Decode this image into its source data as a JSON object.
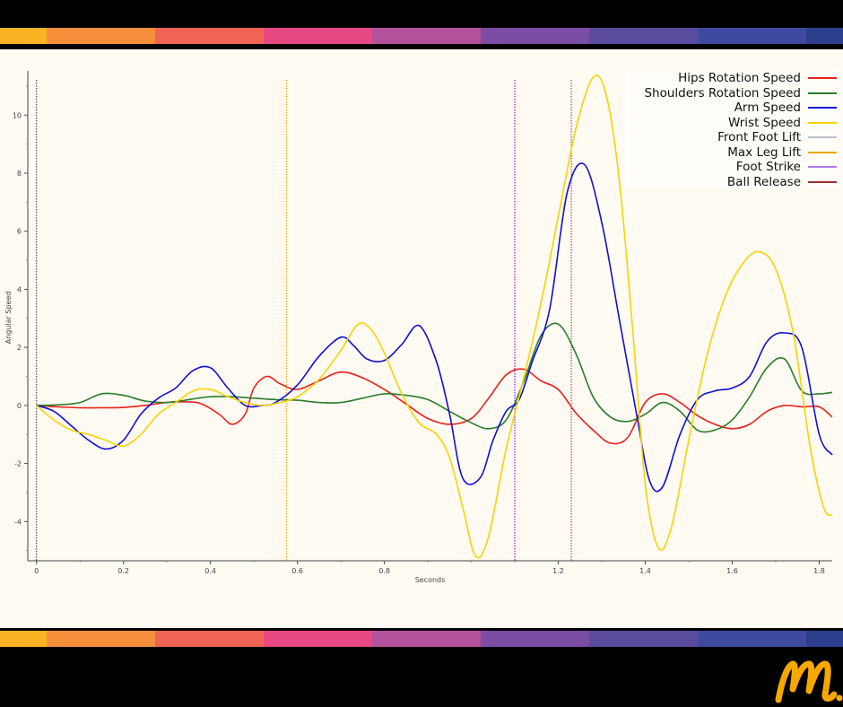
{
  "band_colors": [
    "#fbb324",
    "#f68f3c",
    "#f06456",
    "#e74783",
    "#b2529c",
    "#7b4da2",
    "#5b4b9f",
    "#3e4aa0",
    "#2d3f8c"
  ],
  "chart_data": {
    "type": "line",
    "title": "",
    "xlabel": "Seconds",
    "ylabel": "Angular Speed",
    "xlim": [
      -0.02,
      1.83
    ],
    "ylim": [
      -5.35,
      11.4
    ],
    "x_ticks": [
      0,
      0.2,
      0.4,
      0.6,
      0.8,
      1.2,
      1.4,
      1.6,
      1.8
    ],
    "x_tick_labels": [
      "0",
      "0.2",
      "0.4",
      "0.6",
      "0.8",
      "1.2",
      "1.4",
      "1.6",
      "1.8"
    ],
    "y_ticks": [
      -4,
      -2,
      0,
      2,
      4,
      6,
      8,
      10
    ],
    "y_tick_labels": [
      "-4",
      "-2",
      "0",
      "2",
      "4",
      "6",
      "8",
      "10"
    ],
    "grid": false,
    "legend_position": "top-right",
    "series": [
      {
        "name": "Hips Rotation Speed",
        "color": "#e8201a",
        "x": [
          0,
          0.05,
          0.1,
          0.15,
          0.2,
          0.25,
          0.3,
          0.35,
          0.38,
          0.42,
          0.45,
          0.48,
          0.5,
          0.53,
          0.56,
          0.6,
          0.65,
          0.7,
          0.75,
          0.8,
          0.85,
          0.9,
          0.95,
          1.0,
          1.04,
          1.08,
          1.12,
          1.16,
          1.2,
          1.24,
          1.28,
          1.32,
          1.36,
          1.4,
          1.44,
          1.48,
          1.52,
          1.56,
          1.6,
          1.64,
          1.68,
          1.72,
          1.76,
          1.8,
          1.83
        ],
        "y": [
          0,
          -0.05,
          -0.08,
          -0.08,
          -0.07,
          0,
          0.1,
          0.12,
          0.05,
          -0.3,
          -0.65,
          -0.3,
          0.6,
          1.0,
          0.75,
          0.55,
          0.85,
          1.15,
          0.95,
          0.55,
          0.05,
          -0.45,
          -0.65,
          -0.45,
          0.25,
          1.05,
          1.25,
          0.85,
          0.55,
          -0.25,
          -0.85,
          -1.3,
          -1.1,
          0.1,
          0.4,
          0.1,
          -0.35,
          -0.65,
          -0.8,
          -0.65,
          -0.2,
          0,
          -0.05,
          -0.05,
          -0.4
        ]
      },
      {
        "name": "Shoulders Rotation Speed",
        "color": "#2a7d2a",
        "x": [
          0,
          0.05,
          0.1,
          0.15,
          0.2,
          0.25,
          0.3,
          0.35,
          0.4,
          0.45,
          0.5,
          0.55,
          0.6,
          0.65,
          0.7,
          0.75,
          0.8,
          0.85,
          0.9,
          0.95,
          1.0,
          1.04,
          1.08,
          1.12,
          1.16,
          1.2,
          1.24,
          1.28,
          1.32,
          1.36,
          1.4,
          1.44,
          1.48,
          1.52,
          1.56,
          1.6,
          1.64,
          1.68,
          1.72,
          1.76,
          1.8,
          1.83
        ],
        "y": [
          0,
          0.02,
          0.1,
          0.4,
          0.35,
          0.15,
          0.1,
          0.2,
          0.3,
          0.3,
          0.25,
          0.2,
          0.18,
          0.1,
          0.1,
          0.25,
          0.4,
          0.35,
          0.2,
          -0.2,
          -0.6,
          -0.8,
          -0.5,
          0.8,
          2.4,
          2.8,
          1.8,
          0.3,
          -0.4,
          -0.55,
          -0.3,
          0.1,
          -0.2,
          -0.85,
          -0.85,
          -0.5,
          0.3,
          1.3,
          1.6,
          0.5,
          0.4,
          0.45
        ]
      },
      {
        "name": "Arm Speed",
        "color": "#0f0fd6",
        "x": [
          0,
          0.04,
          0.08,
          0.12,
          0.16,
          0.2,
          0.24,
          0.28,
          0.32,
          0.36,
          0.4,
          0.44,
          0.48,
          0.52,
          0.55,
          0.6,
          0.65,
          0.7,
          0.73,
          0.76,
          0.8,
          0.84,
          0.88,
          0.92,
          0.95,
          0.98,
          1.02,
          1.05,
          1.08,
          1.11,
          1.14,
          1.18,
          1.22,
          1.26,
          1.3,
          1.34,
          1.38,
          1.41,
          1.44,
          1.48,
          1.52,
          1.56,
          1.6,
          1.64,
          1.68,
          1.72,
          1.76,
          1.8,
          1.83
        ],
        "y": [
          0,
          -0.2,
          -0.7,
          -1.2,
          -1.5,
          -1.2,
          -0.3,
          0.25,
          0.6,
          1.2,
          1.3,
          0.6,
          0,
          0,
          0.1,
          0.7,
          1.7,
          2.35,
          2.05,
          1.6,
          1.55,
          2.1,
          2.75,
          1.5,
          -0.3,
          -2.5,
          -2.5,
          -1.2,
          -0.2,
          0.2,
          1.5,
          3.3,
          7.3,
          8.3,
          6.3,
          3.0,
          -0.3,
          -2.6,
          -2.8,
          -1.0,
          0.2,
          0.5,
          0.6,
          1.0,
          2.2,
          2.5,
          2.0,
          -1.0,
          -1.7
        ]
      },
      {
        "name": "Wrist Speed",
        "color": "#fad200",
        "x": [
          0,
          0.04,
          0.08,
          0.12,
          0.16,
          0.2,
          0.24,
          0.28,
          0.32,
          0.36,
          0.4,
          0.44,
          0.48,
          0.52,
          0.56,
          0.6,
          0.65,
          0.7,
          0.74,
          0.77,
          0.8,
          0.84,
          0.88,
          0.92,
          0.95,
          0.98,
          1.01,
          1.04,
          1.08,
          1.12,
          1.16,
          1.2,
          1.24,
          1.28,
          1.31,
          1.34,
          1.37,
          1.4,
          1.43,
          1.46,
          1.5,
          1.54,
          1.58,
          1.62,
          1.66,
          1.7,
          1.74,
          1.78,
          1.81,
          1.83
        ],
        "y": [
          0,
          -0.5,
          -0.85,
          -1.0,
          -1.2,
          -1.4,
          -1.0,
          -0.3,
          0.1,
          0.5,
          0.55,
          0.3,
          0.1,
          0.0,
          0.1,
          0.3,
          0.9,
          1.9,
          2.8,
          2.6,
          1.8,
          0.4,
          -0.6,
          -1.0,
          -1.8,
          -3.5,
          -5.2,
          -4.5,
          -1.5,
          0.9,
          3.5,
          6.5,
          9.5,
          11.3,
          10.7,
          7.8,
          2.8,
          -2.7,
          -4.9,
          -4.2,
          -1.2,
          1.6,
          3.6,
          4.8,
          5.3,
          4.7,
          2.5,
          -1.5,
          -3.5,
          -3.8
        ]
      }
    ],
    "markers": [
      {
        "name": "Front Foot Lift",
        "x": 0,
        "color": "#1f2a44"
      },
      {
        "name": "Max Leg Lift",
        "x": 0.575,
        "color": "#f0a400"
      },
      {
        "name": "Foot Strike",
        "x": 1.1,
        "color": "#a020f0"
      },
      {
        "name": "Ball Release",
        "x": 1.23,
        "color": "#9a3030"
      }
    ],
    "legend": [
      {
        "label": "Hips Rotation Speed",
        "color": "#e8201a"
      },
      {
        "label": "Shoulders Rotation Speed",
        "color": "#2a7d2a"
      },
      {
        "label": "Arm Speed",
        "color": "#0f0fd6"
      },
      {
        "label": "Wrist Speed",
        "color": "#fad200"
      },
      {
        "label": "Front Foot Lift",
        "color": "#b9bfcc"
      },
      {
        "label": "Max Leg Lift",
        "color": "#f0a400"
      },
      {
        "label": "Foot Strike",
        "color": "#b47ae8"
      },
      {
        "label": "Ball Release",
        "color": "#9a3030"
      }
    ]
  },
  "logo": {
    "color": "#f7a800"
  }
}
